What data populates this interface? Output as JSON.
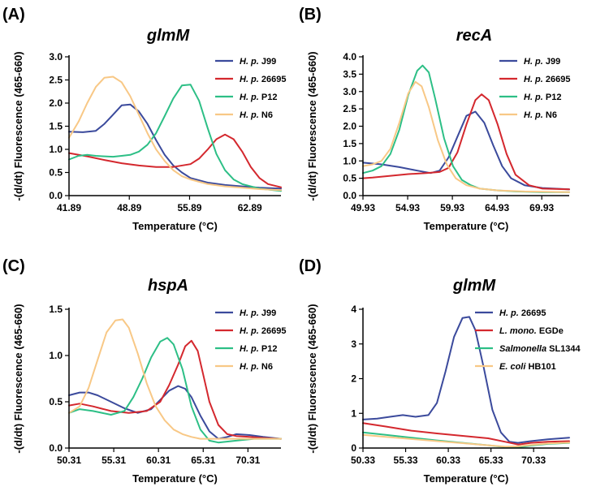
{
  "colors": {
    "blue": "#3b4a9c",
    "red": "#d4282e",
    "green": "#2dbf86",
    "orange": "#f8c886"
  },
  "chart_data": [
    {
      "panel": "(A)",
      "type": "line",
      "title": "glmM",
      "xlabel": "Temperature (°C)",
      "ylabel": "-(d/dt) Fluorescence (465-660)",
      "xlim": [
        41.89,
        66.5
      ],
      "ylim": [
        0,
        3.0
      ],
      "xticks": [
        41.89,
        48.89,
        55.89,
        62.89
      ],
      "xtick_labels": [
        "41.89",
        "48.89",
        "55.89",
        "62.89"
      ],
      "yticks": [
        0,
        0.5,
        1.0,
        1.5,
        2.0,
        2.5,
        3.0
      ],
      "ytick_labels": [
        "0.0",
        "0.5",
        "1.0",
        "1.5",
        "2.0",
        "2.5",
        "3.0"
      ],
      "series": [
        {
          "name": "H. p. J99",
          "name_italic": "H. p.",
          "name_rest": " J99",
          "color": "#3b4a9c",
          "x": [
            41.89,
            43.5,
            45,
            46,
            47,
            48,
            49,
            50,
            51,
            52,
            53,
            54,
            55,
            56,
            58,
            60,
            62,
            64,
            66.5
          ],
          "y": [
            1.38,
            1.37,
            1.4,
            1.55,
            1.75,
            1.95,
            1.97,
            1.82,
            1.55,
            1.2,
            0.88,
            0.65,
            0.5,
            0.38,
            0.28,
            0.23,
            0.2,
            0.17,
            0.15
          ]
        },
        {
          "name": "H. p. 26695",
          "name_italic": "H. p.",
          "name_rest": " 26695",
          "color": "#d4282e",
          "x": [
            41.89,
            44,
            46,
            48,
            50,
            52,
            54,
            56,
            57,
            58,
            59,
            60,
            61,
            62,
            63,
            64,
            65,
            66.5
          ],
          "y": [
            0.92,
            0.85,
            0.77,
            0.7,
            0.65,
            0.62,
            0.62,
            0.68,
            0.8,
            1.0,
            1.22,
            1.32,
            1.22,
            0.95,
            0.62,
            0.38,
            0.25,
            0.18
          ]
        },
        {
          "name": "H. p. P12",
          "name_italic": "H. p.",
          "name_rest": " P12",
          "color": "#2dbf86",
          "x": [
            41.89,
            43,
            44,
            45,
            46,
            47,
            48,
            49,
            50,
            51,
            52,
            53,
            54,
            55,
            56,
            57,
            58,
            59,
            60,
            61,
            62,
            64,
            66.5
          ],
          "y": [
            0.78,
            0.86,
            0.88,
            0.86,
            0.85,
            0.84,
            0.86,
            0.88,
            0.95,
            1.1,
            1.35,
            1.72,
            2.1,
            2.38,
            2.4,
            2.05,
            1.45,
            0.9,
            0.55,
            0.35,
            0.25,
            0.15,
            0.1
          ]
        },
        {
          "name": "H. p. N6",
          "name_italic": "H. p.",
          "name_rest": " N6",
          "color": "#f8c886",
          "x": [
            41.89,
            43,
            44,
            45,
            46,
            47,
            48,
            49,
            50,
            51,
            52,
            53,
            54,
            55,
            56,
            58,
            60,
            62,
            64,
            66.5
          ],
          "y": [
            1.25,
            1.6,
            2.0,
            2.35,
            2.55,
            2.57,
            2.45,
            2.15,
            1.75,
            1.35,
            1.0,
            0.75,
            0.55,
            0.42,
            0.35,
            0.25,
            0.2,
            0.17,
            0.14,
            0.12
          ]
        }
      ]
    },
    {
      "panel": "(B)",
      "type": "line",
      "title": "recA",
      "xlabel": "Temperature (°C)",
      "ylabel": "-(d/dt) Fluorescence (465-660)",
      "xlim": [
        49.93,
        73.0
      ],
      "ylim": [
        0,
        4.0
      ],
      "xticks": [
        49.93,
        54.93,
        59.93,
        64.93,
        69.93
      ],
      "xtick_labels": [
        "49.93",
        "54.93",
        "59.93",
        "64.93",
        "69.93"
      ],
      "yticks": [
        0,
        0.5,
        1.0,
        1.5,
        2.0,
        2.5,
        3.0,
        3.5,
        4.0
      ],
      "ytick_labels": [
        "0.0",
        "0.5",
        "1.0",
        "1.5",
        "2.0",
        "2.5",
        "3.0",
        "3.5",
        "4.0"
      ],
      "series": [
        {
          "name": "H. p. J99",
          "name_italic": "H. p.",
          "name_rest": " J99",
          "color": "#3b4a9c",
          "x": [
            49.93,
            52,
            54,
            56,
            57.5,
            58.5,
            59.5,
            60.5,
            61.5,
            62.5,
            63.5,
            64.5,
            65.5,
            66.5,
            68,
            70,
            73
          ],
          "y": [
            0.95,
            0.9,
            0.82,
            0.72,
            0.65,
            0.72,
            1.1,
            1.7,
            2.3,
            2.42,
            2.1,
            1.45,
            0.85,
            0.5,
            0.3,
            0.22,
            0.18
          ]
        },
        {
          "name": "H. p. 26695",
          "name_italic": "H. p.",
          "name_rest": " 26695",
          "color": "#d4282e",
          "x": [
            49.93,
            51,
            53,
            55,
            57,
            58.5,
            59.5,
            60.5,
            61.5,
            62.5,
            63.2,
            64,
            65,
            66,
            67,
            68.5,
            70,
            73
          ],
          "y": [
            0.5,
            0.52,
            0.57,
            0.62,
            0.65,
            0.68,
            0.8,
            1.25,
            2.05,
            2.75,
            2.92,
            2.75,
            2.05,
            1.2,
            0.6,
            0.3,
            0.2,
            0.18
          ]
        },
        {
          "name": "H. p. P12",
          "name_italic": "H. p.",
          "name_rest": " P12",
          "color": "#2dbf86",
          "x": [
            49.93,
            51,
            52,
            53,
            54,
            55,
            56,
            56.6,
            57.3,
            58,
            59,
            60,
            61,
            62,
            63,
            65,
            67,
            70,
            73
          ],
          "y": [
            0.65,
            0.72,
            0.85,
            1.2,
            1.9,
            2.9,
            3.6,
            3.75,
            3.55,
            2.8,
            1.65,
            0.85,
            0.45,
            0.3,
            0.2,
            0.15,
            0.12,
            0.1,
            0.1
          ]
        },
        {
          "name": "H. p. N6",
          "name_italic": "H. p.",
          "name_rest": " N6",
          "color": "#f8c886",
          "x": [
            49.93,
            51,
            52,
            53,
            54,
            55,
            55.8,
            56.5,
            57.3,
            58.3,
            59.3,
            60.3,
            61.5,
            63,
            65,
            68,
            73
          ],
          "y": [
            0.85,
            0.9,
            1.0,
            1.35,
            2.1,
            2.95,
            3.28,
            3.15,
            2.55,
            1.6,
            0.9,
            0.5,
            0.3,
            0.2,
            0.15,
            0.12,
            0.1
          ]
        }
      ]
    },
    {
      "panel": "(C)",
      "type": "line",
      "title": "hspA",
      "xlabel": "Temperature (°C)",
      "ylabel": "-(d/dt) Fluorescence (465-660)",
      "xlim": [
        50.31,
        74.0
      ],
      "ylim": [
        0,
        1.5
      ],
      "xticks": [
        50.31,
        55.31,
        60.31,
        65.31,
        70.31
      ],
      "xtick_labels": [
        "50.31",
        "55.31",
        "60.31",
        "65.31",
        "70.31"
      ],
      "yticks": [
        0,
        0.5,
        1.0,
        1.5
      ],
      "ytick_labels": [
        "0.0",
        "0.5",
        "1.0",
        "1.5"
      ],
      "series": [
        {
          "name": "H. p. J99",
          "name_italic": "H. p.",
          "name_rest": " J99",
          "color": "#3b4a9c",
          "x": [
            50.31,
            51.5,
            52.5,
            53.5,
            55,
            56.5,
            58,
            59.5,
            60.5,
            61.5,
            62.5,
            63.3,
            64,
            65,
            66,
            67,
            68,
            69,
            70.5,
            72,
            74
          ],
          "y": [
            0.57,
            0.6,
            0.6,
            0.57,
            0.5,
            0.43,
            0.38,
            0.42,
            0.52,
            0.62,
            0.67,
            0.64,
            0.55,
            0.35,
            0.18,
            0.1,
            0.12,
            0.15,
            0.14,
            0.12,
            0.1
          ]
        },
        {
          "name": "H. p. 26695",
          "name_italic": "H. p.",
          "name_rest": " 26695",
          "color": "#d4282e",
          "x": [
            50.31,
            51.5,
            53,
            55,
            57,
            59,
            60.5,
            61.5,
            62.5,
            63.3,
            64,
            64.7,
            65.3,
            66,
            67,
            68,
            69,
            70.5,
            72,
            74
          ],
          "y": [
            0.46,
            0.48,
            0.45,
            0.4,
            0.38,
            0.4,
            0.5,
            0.68,
            0.9,
            1.1,
            1.16,
            1.05,
            0.8,
            0.5,
            0.25,
            0.15,
            0.13,
            0.12,
            0.11,
            0.1
          ]
        },
        {
          "name": "H. p. P12",
          "name_italic": "H. p.",
          "name_rest": " P12",
          "color": "#2dbf86",
          "x": [
            50.31,
            51.5,
            53,
            55,
            56.5,
            57.5,
            58.5,
            59.5,
            60.5,
            61.3,
            62,
            63,
            64,
            65,
            66,
            67,
            69,
            71,
            74
          ],
          "y": [
            0.38,
            0.42,
            0.4,
            0.36,
            0.4,
            0.55,
            0.75,
            0.98,
            1.15,
            1.19,
            1.12,
            0.85,
            0.45,
            0.2,
            0.08,
            0.06,
            0.08,
            0.1,
            0.1
          ]
        },
        {
          "name": "H. p. N6",
          "name_italic": "H. p.",
          "name_rest": " N6",
          "color": "#f8c886",
          "x": [
            50.31,
            51.5,
            52.5,
            53.5,
            54.5,
            55.5,
            56.3,
            57,
            58,
            59,
            60,
            61,
            62,
            63,
            64,
            65,
            67,
            70,
            74
          ],
          "y": [
            0.38,
            0.45,
            0.65,
            0.95,
            1.25,
            1.38,
            1.39,
            1.3,
            1.02,
            0.7,
            0.45,
            0.3,
            0.2,
            0.15,
            0.12,
            0.1,
            0.1,
            0.1,
            0.1
          ]
        }
      ]
    },
    {
      "panel": "(D)",
      "type": "line",
      "title": "glmM",
      "xlabel": "Temperature (°C)",
      "ylabel": "-(d/dt) Fluorescence (465-660)",
      "xlim": [
        50.33,
        74.5
      ],
      "ylim": [
        0,
        4
      ],
      "xticks": [
        50.33,
        55.33,
        60.33,
        65.33,
        70.33
      ],
      "xtick_labels": [
        "50.33",
        "55.33",
        "60.33",
        "65.33",
        "70.33"
      ],
      "yticks": [
        0,
        1,
        2,
        3,
        4
      ],
      "ytick_labels": [
        "0",
        "1",
        "2",
        "3",
        "4"
      ],
      "series": [
        {
          "name": "H. p. 26695",
          "name_italic": "H. p.",
          "name_rest": " 26695",
          "color": "#3b4a9c",
          "x": [
            50.33,
            52,
            53.5,
            55,
            56.5,
            58,
            59,
            60,
            61,
            62,
            62.8,
            63.5,
            64.5,
            65.5,
            66.5,
            67.5,
            68.5,
            70,
            72,
            74.5
          ],
          "y": [
            0.82,
            0.85,
            0.9,
            0.95,
            0.9,
            0.95,
            1.3,
            2.2,
            3.2,
            3.75,
            3.78,
            3.4,
            2.3,
            1.1,
            0.45,
            0.18,
            0.15,
            0.2,
            0.25,
            0.3
          ]
        },
        {
          "name": "L. mono. EGDe",
          "name_italic": "L. mono.",
          "name_rest": "  EGDe",
          "color": "#d4282e",
          "x": [
            50.33,
            53,
            56,
            59,
            62,
            65,
            67,
            68.5,
            70,
            72,
            74.5
          ],
          "y": [
            0.72,
            0.62,
            0.5,
            0.42,
            0.35,
            0.28,
            0.18,
            0.1,
            0.15,
            0.18,
            0.2
          ]
        },
        {
          "name": "Salmonella SL1344",
          "name_italic": "Salmonella",
          "name_rest": " SL1344",
          "color": "#2dbf86",
          "x": [
            50.33,
            53,
            56,
            59,
            62,
            65,
            67,
            68.5,
            70,
            72,
            74.5
          ],
          "y": [
            0.45,
            0.38,
            0.3,
            0.22,
            0.15,
            0.08,
            0.03,
            0.02,
            0.07,
            0.12,
            0.15
          ]
        },
        {
          "name": "E. coli HB101",
          "name_italic": "E. coli",
          "name_rest": " HB101",
          "color": "#f8c886",
          "x": [
            50.33,
            53,
            56,
            59,
            62,
            65,
            67,
            68.5,
            70,
            72,
            74.5
          ],
          "y": [
            0.38,
            0.32,
            0.26,
            0.2,
            0.14,
            0.08,
            0.04,
            0.05,
            0.09,
            0.13,
            0.16
          ]
        }
      ]
    }
  ]
}
